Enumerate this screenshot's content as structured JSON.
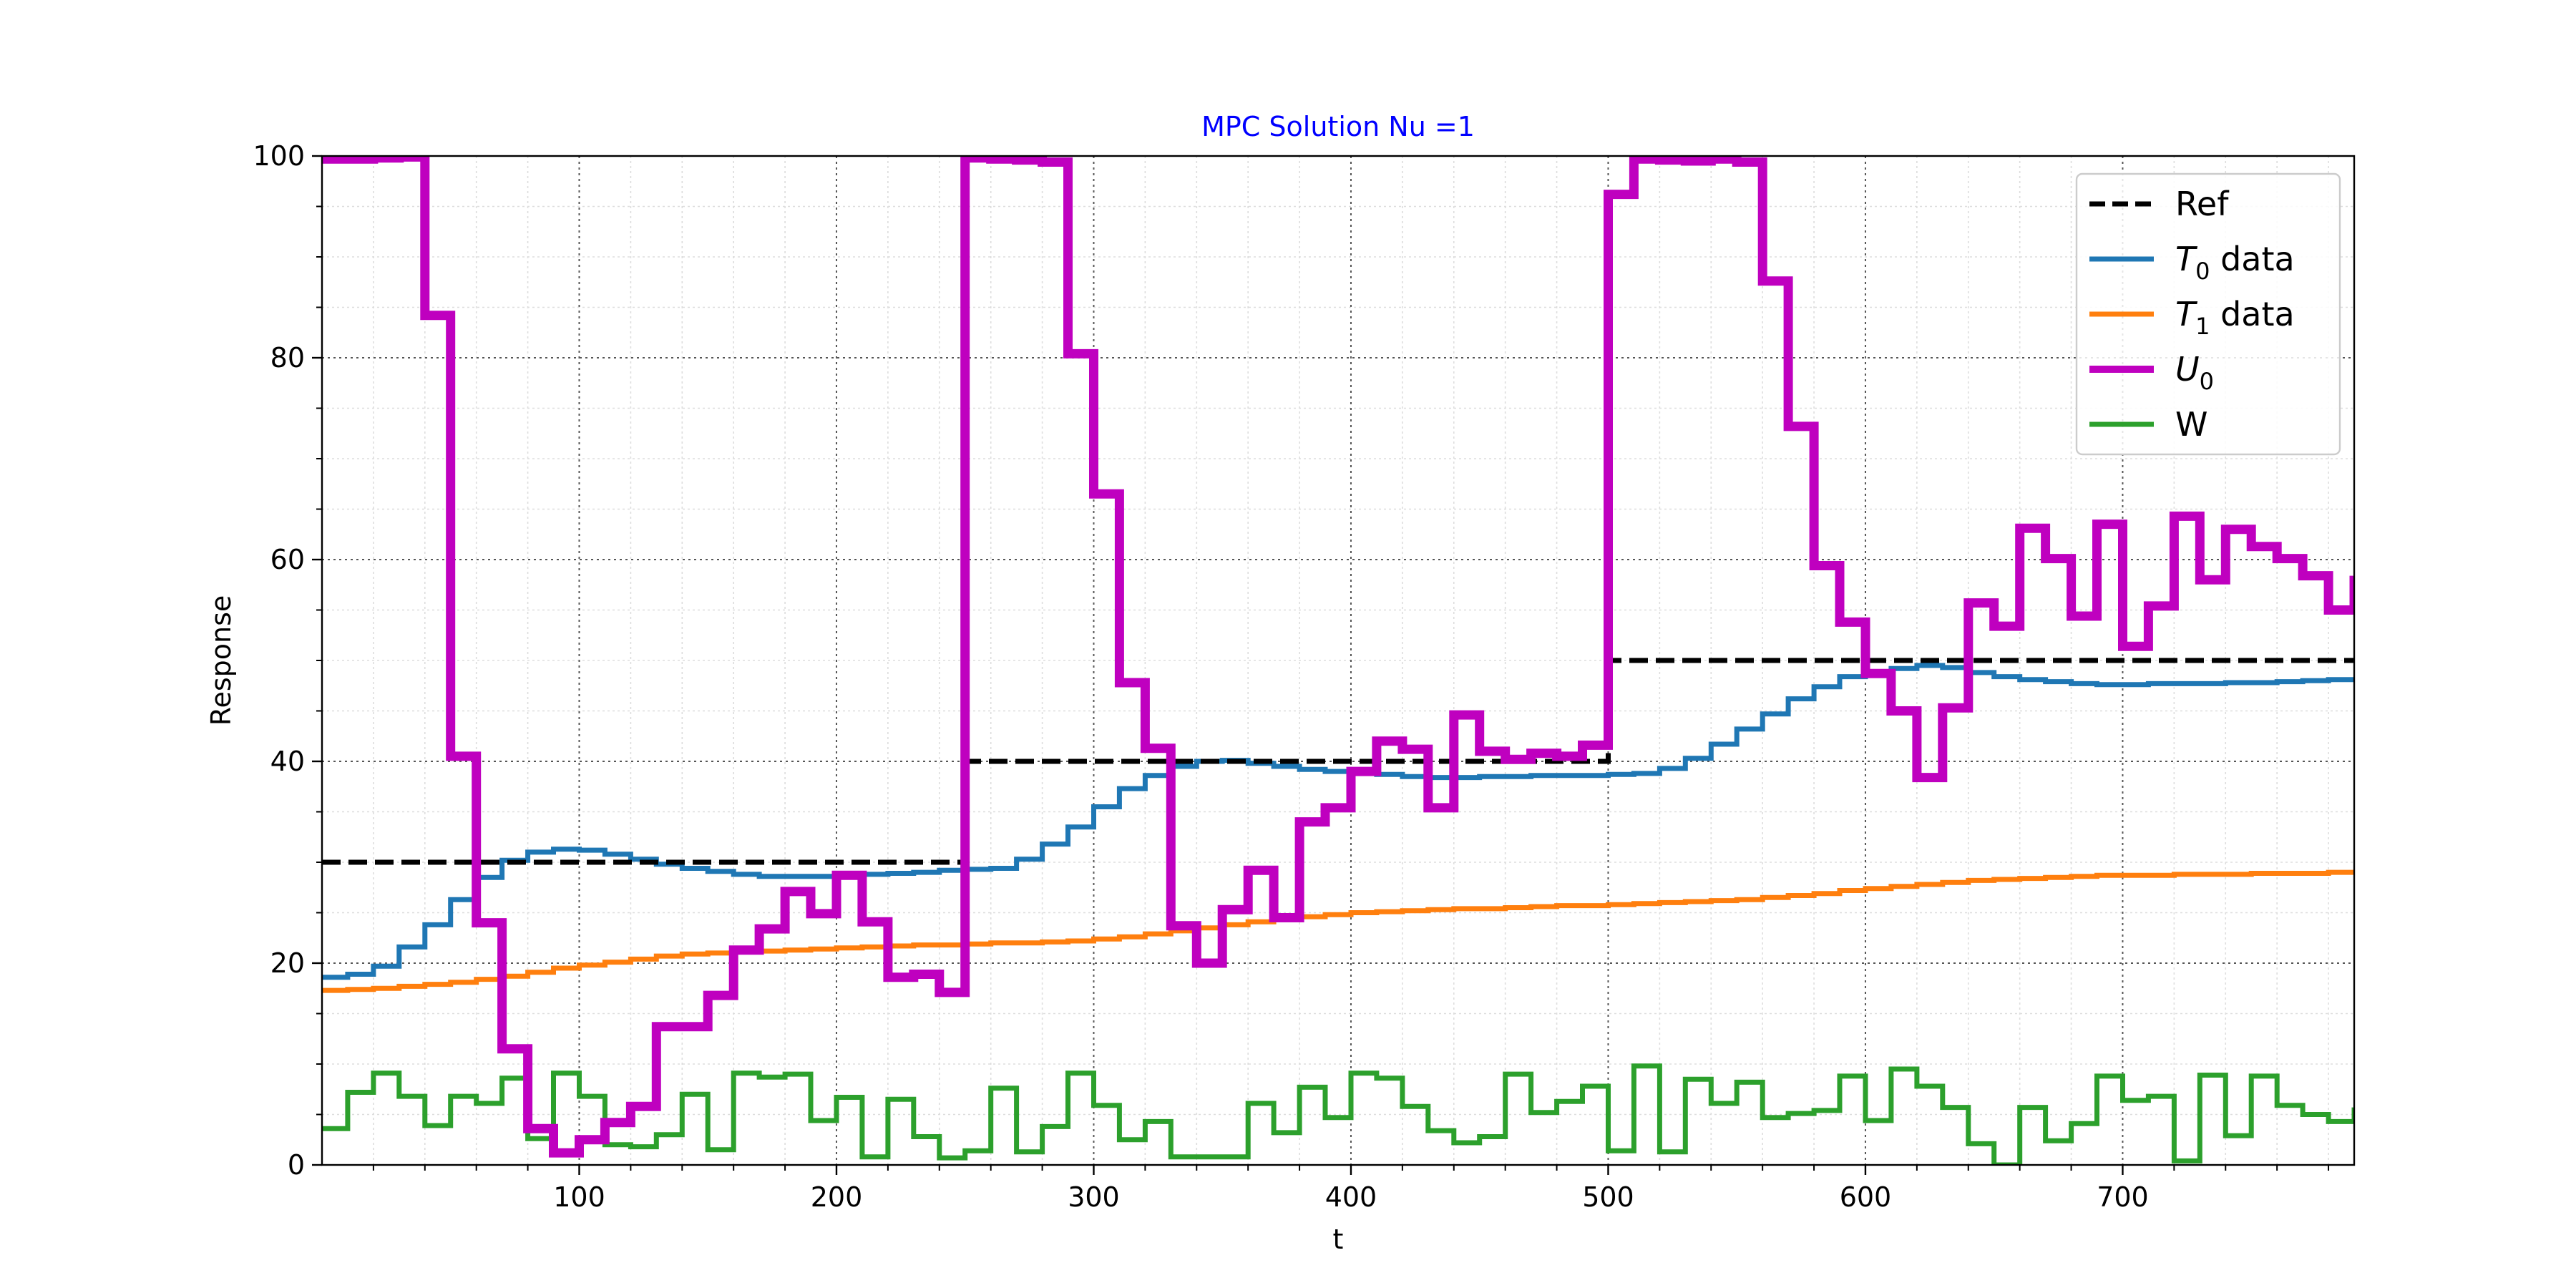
{
  "chart_data": {
    "type": "line",
    "title": "MPC Solution Nu =1",
    "title_color": "#0000ff",
    "xlabel": "t",
    "ylabel": "Response",
    "xlim": [
      0,
      790
    ],
    "ylim": [
      0,
      100
    ],
    "x_ticks": [
      100,
      200,
      300,
      400,
      500,
      600,
      700
    ],
    "y_ticks": [
      0,
      20,
      40,
      60,
      80,
      100
    ],
    "grid": "on",
    "legend": "top-right",
    "series": [
      {
        "name": "Ref",
        "legend_main": "Ref",
        "legend_sub": "",
        "legend_suffix": "",
        "color": "#000000",
        "style": "dashed",
        "x": [
          0,
          250,
          500,
          790
        ],
        "y": [
          30,
          40,
          50,
          50
        ]
      },
      {
        "name": "T0 data",
        "legend_main": "T",
        "legend_sub": "0",
        "legend_suffix": " data",
        "color": "#1f77b4",
        "style": "step",
        "x": [
          0,
          10,
          20,
          30,
          40,
          50,
          60,
          70,
          80,
          90,
          100,
          110,
          120,
          130,
          140,
          150,
          160,
          170,
          180,
          190,
          200,
          210,
          220,
          230,
          240,
          250,
          260,
          270,
          280,
          290,
          300,
          310,
          320,
          330,
          340,
          350,
          360,
          370,
          380,
          390,
          400,
          410,
          420,
          430,
          440,
          450,
          460,
          470,
          480,
          490,
          500,
          510,
          520,
          530,
          540,
          550,
          560,
          570,
          580,
          590,
          600,
          610,
          620,
          630,
          640,
          650,
          660,
          670,
          680,
          690,
          700,
          710,
          720,
          730,
          740,
          750,
          760,
          770,
          780,
          790
        ],
        "y": [
          18.6,
          18.9,
          19.7,
          21.6,
          23.8,
          26.3,
          28.5,
          30.2,
          31.0,
          31.3,
          31.2,
          30.8,
          30.3,
          29.8,
          29.4,
          29.1,
          28.8,
          28.6,
          28.6,
          28.6,
          28.7,
          28.8,
          28.9,
          29.0,
          29.2,
          29.3,
          29.4,
          30.3,
          31.8,
          33.5,
          35.5,
          37.3,
          38.6,
          39.5,
          40.0,
          40.1,
          39.8,
          39.5,
          39.2,
          39.0,
          38.9,
          38.7,
          38.5,
          38.4,
          38.4,
          38.5,
          38.5,
          38.6,
          38.6,
          38.6,
          38.7,
          38.8,
          39.3,
          40.3,
          41.7,
          43.2,
          44.7,
          46.2,
          47.4,
          48.4,
          48.9,
          49.2,
          49.5,
          49.3,
          48.8,
          48.4,
          48.1,
          47.9,
          47.7,
          47.6,
          47.6,
          47.7,
          47.7,
          47.7,
          47.8,
          47.8,
          47.9,
          48.0,
          48.1,
          48.2
        ]
      },
      {
        "name": "T1 data",
        "legend_main": "T",
        "legend_sub": "1",
        "legend_suffix": " data",
        "color": "#ff7f0e",
        "style": "step",
        "x": [
          0,
          10,
          20,
          30,
          40,
          50,
          60,
          70,
          80,
          90,
          100,
          110,
          120,
          130,
          140,
          150,
          160,
          170,
          180,
          190,
          200,
          210,
          220,
          230,
          240,
          250,
          260,
          270,
          280,
          290,
          300,
          310,
          320,
          330,
          340,
          350,
          360,
          370,
          380,
          390,
          400,
          410,
          420,
          430,
          440,
          450,
          460,
          470,
          480,
          490,
          500,
          510,
          520,
          530,
          540,
          550,
          560,
          570,
          580,
          590,
          600,
          610,
          620,
          630,
          640,
          650,
          660,
          670,
          680,
          690,
          700,
          710,
          720,
          730,
          740,
          750,
          760,
          770,
          780,
          790
        ],
        "y": [
          17.3,
          17.4,
          17.5,
          17.7,
          17.9,
          18.1,
          18.4,
          18.7,
          19.1,
          19.5,
          19.8,
          20.1,
          20.4,
          20.7,
          20.9,
          21.0,
          21.1,
          21.2,
          21.3,
          21.4,
          21.5,
          21.6,
          21.7,
          21.8,
          21.8,
          21.9,
          22.0,
          22.0,
          22.1,
          22.2,
          22.4,
          22.6,
          22.9,
          23.2,
          23.5,
          23.8,
          24.1,
          24.4,
          24.6,
          24.8,
          25.0,
          25.1,
          25.2,
          25.3,
          25.4,
          25.4,
          25.5,
          25.6,
          25.7,
          25.7,
          25.8,
          25.9,
          26.0,
          26.1,
          26.2,
          26.3,
          26.5,
          26.7,
          26.9,
          27.2,
          27.4,
          27.6,
          27.8,
          28.0,
          28.2,
          28.3,
          28.4,
          28.5,
          28.6,
          28.7,
          28.7,
          28.7,
          28.8,
          28.8,
          28.8,
          28.9,
          28.9,
          28.9,
          29.0,
          29.0
        ]
      },
      {
        "name": "U0",
        "legend_main": "U",
        "legend_sub": "0",
        "legend_suffix": "",
        "color": "#bf00bf",
        "style": "step",
        "x": [
          0,
          10,
          20,
          30,
          40,
          50,
          60,
          70,
          80,
          90,
          100,
          110,
          120,
          130,
          140,
          150,
          160,
          170,
          180,
          190,
          200,
          210,
          220,
          230,
          240,
          250,
          260,
          270,
          280,
          290,
          300,
          310,
          320,
          330,
          340,
          350,
          360,
          370,
          380,
          390,
          400,
          410,
          420,
          430,
          440,
          450,
          460,
          470,
          480,
          490,
          500,
          510,
          520,
          530,
          540,
          550,
          560,
          570,
          580,
          590,
          600,
          610,
          620,
          630,
          640,
          650,
          660,
          670,
          680,
          690,
          700,
          710,
          720,
          730,
          740,
          750,
          760,
          770,
          780,
          790
        ],
        "y": [
          99.7,
          99.7,
          99.8,
          99.9,
          84.2,
          40.5,
          24.0,
          11.5,
          3.6,
          1.2,
          2.5,
          4.2,
          5.8,
          13.7,
          13.7,
          16.8,
          21.3,
          23.4,
          27.1,
          24.9,
          28.7,
          24.1,
          18.6,
          18.9,
          17.1,
          99.8,
          99.7,
          99.6,
          99.4,
          80.4,
          66.5,
          47.8,
          41.3,
          23.7,
          20.0,
          25.3,
          29.2,
          24.5,
          34.0,
          35.4,
          39.0,
          42.0,
          41.2,
          35.4,
          44.6,
          41.0,
          40.2,
          40.8,
          40.5,
          41.6,
          96.2,
          99.7,
          99.6,
          99.5,
          99.7,
          99.4,
          87.6,
          73.2,
          59.4,
          53.8,
          48.7,
          45.0,
          38.4,
          45.3,
          55.7,
          53.4,
          63.1,
          60.1,
          54.4,
          63.5,
          51.4,
          55.4,
          64.3,
          58.0,
          63.0,
          61.3,
          60.1,
          58.4,
          55.0,
          58.4
        ]
      },
      {
        "name": "W",
        "legend_main": "W",
        "legend_sub": "",
        "legend_suffix": "",
        "color": "#2ca02c",
        "style": "step",
        "x": [
          0,
          10,
          20,
          30,
          40,
          50,
          60,
          70,
          80,
          90,
          100,
          110,
          120,
          130,
          140,
          150,
          160,
          170,
          180,
          190,
          200,
          210,
          220,
          230,
          240,
          250,
          260,
          270,
          280,
          290,
          300,
          310,
          320,
          330,
          340,
          350,
          360,
          370,
          380,
          390,
          400,
          410,
          420,
          430,
          440,
          450,
          460,
          470,
          480,
          490,
          500,
          510,
          520,
          530,
          540,
          550,
          560,
          570,
          580,
          590,
          600,
          610,
          620,
          630,
          640,
          650,
          660,
          670,
          680,
          690,
          700,
          710,
          720,
          730,
          740,
          750,
          760,
          770,
          780,
          790
        ],
        "y": [
          3.6,
          7.2,
          9.1,
          6.8,
          3.9,
          6.8,
          6.1,
          8.6,
          2.6,
          9.1,
          6.8,
          2.0,
          1.8,
          3.0,
          7.0,
          1.5,
          9.1,
          8.7,
          9.0,
          4.4,
          6.7,
          0.8,
          6.5,
          2.8,
          0.7,
          1.4,
          7.6,
          1.3,
          3.8,
          9.1,
          5.9,
          2.5,
          4.3,
          0.8,
          0.8,
          0.8,
          6.1,
          3.2,
          7.7,
          4.7,
          9.1,
          8.6,
          5.8,
          3.4,
          2.2,
          2.8,
          9.0,
          5.2,
          6.3,
          7.8,
          1.4,
          9.8,
          1.3,
          8.5,
          6.1,
          8.2,
          4.7,
          5.1,
          5.4,
          8.8,
          4.4,
          9.5,
          7.8,
          5.7,
          2.1,
          0.0,
          5.7,
          2.4,
          4.1,
          8.8,
          6.4,
          6.8,
          0.4,
          8.9,
          2.9,
          8.8,
          5.9,
          5.0,
          4.3,
          5.7
        ]
      }
    ]
  }
}
